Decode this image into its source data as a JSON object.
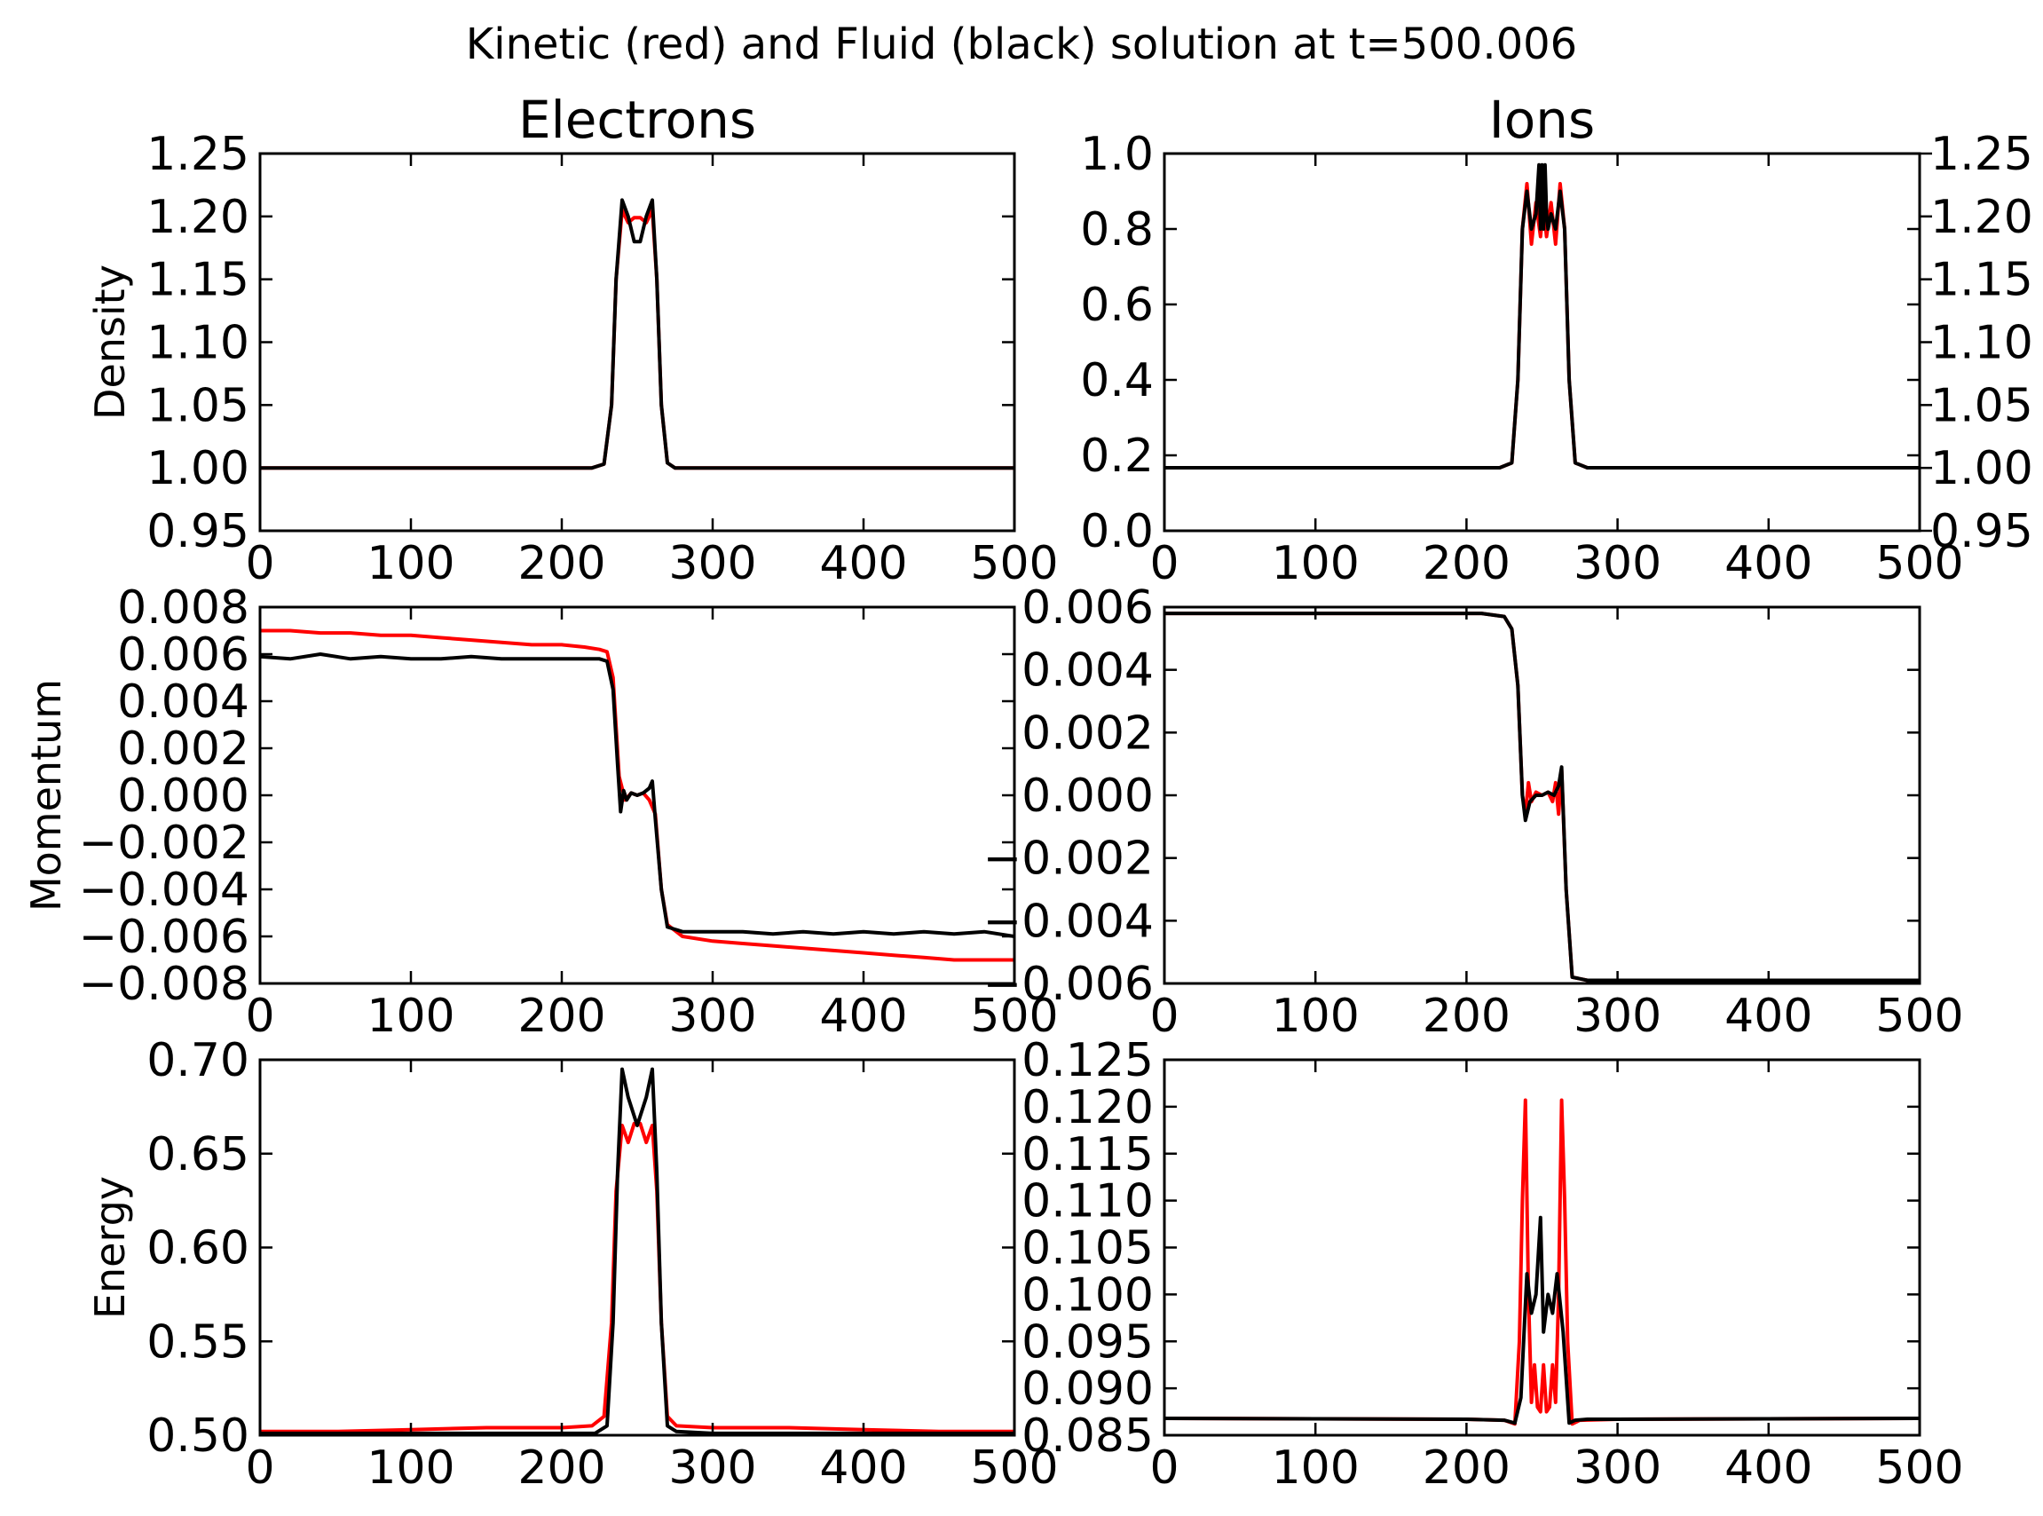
{
  "title": "Kinetic (red) and Fluid (black) solution at t=500.006",
  "colors": {
    "kinetic": "#ff0000",
    "fluid": "#000000"
  },
  "chart_data": [
    {
      "id": "electrons-density",
      "type": "line",
      "title": "Electrons",
      "xlabel": "",
      "ylabel": "Density",
      "xlim": [
        0,
        500
      ],
      "ylim": [
        0.95,
        1.25
      ],
      "xticks": [
        0,
        100,
        200,
        300,
        400,
        500
      ],
      "yticks": [
        0.95,
        1.0,
        1.05,
        1.1,
        1.15,
        1.2,
        1.25
      ],
      "ytick_decimals": 2,
      "series": [
        {
          "color": "#ff0000",
          "x": [
            0,
            220,
            228,
            233,
            236,
            240,
            244,
            248,
            252,
            256,
            260,
            263,
            266,
            270,
            275,
            280,
            500
          ],
          "y": [
            1.0,
            1.0,
            1.003,
            1.05,
            1.15,
            1.205,
            1.195,
            1.199,
            1.199,
            1.195,
            1.205,
            1.15,
            1.05,
            1.004,
            1.0,
            1.0,
            1.0
          ]
        },
        {
          "color": "#000000",
          "x": [
            0,
            220,
            228,
            233,
            236,
            240,
            244,
            248,
            252,
            256,
            260,
            263,
            266,
            270,
            275,
            280,
            500
          ],
          "y": [
            1.0,
            1.0,
            1.003,
            1.05,
            1.15,
            1.213,
            1.2,
            1.18,
            1.18,
            1.2,
            1.213,
            1.15,
            1.05,
            1.004,
            1.0,
            1.0,
            1.0
          ]
        }
      ]
    },
    {
      "id": "ions-density",
      "type": "line",
      "title": "Ions",
      "xlabel": "",
      "ylabel": "",
      "xlim": [
        0,
        500
      ],
      "ylim": [
        0.0,
        1.0
      ],
      "xticks": [
        0,
        100,
        200,
        300,
        400,
        500
      ],
      "yticks": [
        0.0,
        0.2,
        0.4,
        0.6,
        0.8,
        1.0
      ],
      "ytick_decimals": 1,
      "y2lim": [
        0.95,
        1.25
      ],
      "y2ticks": [
        0.95,
        1.0,
        1.05,
        1.1,
        1.15,
        1.2,
        1.25
      ],
      "series": [
        {
          "color": "#ff0000",
          "x": [
            0,
            222,
            230,
            234,
            237,
            240,
            243,
            246,
            249,
            251,
            253,
            256,
            259,
            262,
            265,
            268,
            272,
            280,
            500
          ],
          "y": [
            0.167,
            0.167,
            0.18,
            0.4,
            0.8,
            0.92,
            0.76,
            0.87,
            0.78,
            0.86,
            0.78,
            0.87,
            0.76,
            0.92,
            0.8,
            0.4,
            0.18,
            0.167,
            0.167
          ]
        },
        {
          "color": "#000000",
          "x": [
            0,
            222,
            230,
            234,
            237,
            240,
            243,
            246,
            248,
            249,
            250,
            251,
            252,
            253,
            254,
            256,
            259,
            262,
            265,
            268,
            272,
            280,
            500
          ],
          "y": [
            0.167,
            0.167,
            0.18,
            0.4,
            0.8,
            0.9,
            0.8,
            0.84,
            0.97,
            0.8,
            0.97,
            0.8,
            0.97,
            0.84,
            0.8,
            0.84,
            0.8,
            0.9,
            0.8,
            0.4,
            0.18,
            0.167,
            0.167
          ]
        }
      ]
    },
    {
      "id": "electrons-momentum",
      "type": "line",
      "title": "",
      "xlabel": "",
      "ylabel": "Momentum",
      "xlim": [
        0,
        500
      ],
      "ylim": [
        -0.008,
        0.008
      ],
      "xticks": [
        0,
        100,
        200,
        300,
        400,
        500
      ],
      "yticks": [
        -0.008,
        -0.006,
        -0.004,
        -0.002,
        0.0,
        0.002,
        0.004,
        0.006,
        0.008
      ],
      "ytick_decimals": 3,
      "series": [
        {
          "color": "#ff0000",
          "x": [
            0,
            20,
            40,
            60,
            80,
            100,
            120,
            140,
            160,
            180,
            200,
            215,
            225,
            230,
            234,
            238,
            242,
            246,
            250,
            254,
            258,
            262,
            266,
            270,
            280,
            300,
            320,
            340,
            360,
            380,
            400,
            420,
            440,
            460,
            480,
            500
          ],
          "y": [
            0.007,
            0.007,
            0.0069,
            0.0069,
            0.0068,
            0.0068,
            0.0067,
            0.0066,
            0.0065,
            0.0064,
            0.0064,
            0.0063,
            0.0062,
            0.0061,
            0.005,
            0.0008,
            -0.0002,
            0.0001,
            0.0,
            0.0001,
            -0.0002,
            -0.0008,
            -0.004,
            -0.0055,
            -0.006,
            -0.0062,
            -0.0063,
            -0.0064,
            -0.0065,
            -0.0066,
            -0.0067,
            -0.0068,
            -0.0069,
            -0.007,
            -0.007,
            -0.007
          ]
        },
        {
          "color": "#000000",
          "x": [
            0,
            20,
            40,
            60,
            80,
            100,
            120,
            140,
            160,
            180,
            200,
            215,
            225,
            230,
            234,
            237,
            239,
            241,
            243,
            246,
            250,
            254,
            258,
            260,
            262,
            266,
            270,
            280,
            300,
            320,
            340,
            360,
            380,
            400,
            420,
            440,
            460,
            480,
            500
          ],
          "y": [
            0.0059,
            0.0058,
            0.006,
            0.0058,
            0.0059,
            0.0058,
            0.0058,
            0.0059,
            0.0058,
            0.0058,
            0.0058,
            0.0058,
            0.0058,
            0.0057,
            0.0045,
            0.0013,
            -0.0007,
            0.0002,
            -0.0002,
            0.0001,
            0.0,
            0.0001,
            0.0003,
            0.0006,
            -0.001,
            -0.004,
            -0.0056,
            -0.0058,
            -0.0058,
            -0.0058,
            -0.0059,
            -0.0058,
            -0.0059,
            -0.0058,
            -0.0059,
            -0.0058,
            -0.0059,
            -0.0058,
            -0.006
          ]
        }
      ]
    },
    {
      "id": "ions-momentum",
      "type": "line",
      "title": "",
      "xlabel": "",
      "ylabel": "",
      "xlim": [
        0,
        500
      ],
      "ylim": [
        -0.006,
        0.006
      ],
      "xticks": [
        0,
        100,
        200,
        300,
        400,
        500
      ],
      "yticks": [
        -0.006,
        -0.004,
        -0.002,
        0.0,
        0.002,
        0.004,
        0.006
      ],
      "ytick_decimals": 3,
      "series": [
        {
          "color": "#ff0000",
          "x": [
            0,
            210,
            225,
            230,
            234,
            237,
            239,
            241,
            243,
            246,
            250,
            254,
            257,
            259,
            261,
            263,
            266,
            270,
            280,
            300,
            500
          ],
          "y": [
            0.0058,
            0.0058,
            0.0057,
            0.0053,
            0.0035,
            0.0,
            -0.0006,
            0.0004,
            -0.0002,
            0.0001,
            0.0,
            0.0001,
            -0.0002,
            0.0004,
            -0.0006,
            0.0008,
            -0.003,
            -0.0058,
            -0.0059,
            -0.0059,
            -0.0059
          ]
        },
        {
          "color": "#000000",
          "x": [
            0,
            210,
            225,
            230,
            234,
            237,
            239,
            242,
            246,
            250,
            254,
            258,
            261,
            263,
            266,
            270,
            280,
            300,
            500
          ],
          "y": [
            0.0058,
            0.0058,
            0.0057,
            0.0053,
            0.0035,
            0.0,
            -0.0008,
            -0.0002,
            0.0,
            0.0,
            0.0001,
            0.0,
            0.0003,
            0.0009,
            -0.003,
            -0.0058,
            -0.0059,
            -0.0059,
            -0.0059
          ]
        }
      ]
    },
    {
      "id": "electrons-energy",
      "type": "line",
      "title": "",
      "xlabel": "",
      "ylabel": "Energy",
      "xlim": [
        0,
        500
      ],
      "ylim": [
        0.5,
        0.7
      ],
      "xticks": [
        0,
        100,
        200,
        300,
        400,
        500
      ],
      "yticks": [
        0.5,
        0.55,
        0.6,
        0.65,
        0.7
      ],
      "ytick_decimals": 2,
      "series": [
        {
          "color": "#ff0000",
          "x": [
            0,
            50,
            100,
            150,
            200,
            220,
            228,
            233,
            236,
            240,
            244,
            248,
            252,
            256,
            260,
            263,
            266,
            270,
            276,
            300,
            350,
            400,
            450,
            500
          ],
          "y": [
            0.502,
            0.502,
            0.503,
            0.504,
            0.504,
            0.505,
            0.51,
            0.56,
            0.63,
            0.665,
            0.656,
            0.666,
            0.666,
            0.656,
            0.665,
            0.63,
            0.56,
            0.51,
            0.505,
            0.504,
            0.504,
            0.503,
            0.502,
            0.502
          ]
        },
        {
          "color": "#000000",
          "x": [
            0,
            50,
            100,
            150,
            200,
            222,
            230,
            234,
            237,
            240,
            244,
            248,
            250,
            252,
            256,
            260,
            263,
            266,
            270,
            276,
            300,
            500
          ],
          "y": [
            0.501,
            0.501,
            0.501,
            0.501,
            0.501,
            0.501,
            0.505,
            0.56,
            0.64,
            0.695,
            0.68,
            0.67,
            0.665,
            0.67,
            0.68,
            0.695,
            0.64,
            0.56,
            0.505,
            0.502,
            0.501,
            0.501
          ]
        }
      ]
    },
    {
      "id": "ions-energy",
      "type": "line",
      "title": "",
      "xlabel": "",
      "ylabel": "",
      "xlim": [
        0,
        500
      ],
      "ylim": [
        0.085,
        0.125
      ],
      "xticks": [
        0,
        100,
        200,
        300,
        400,
        500
      ],
      "yticks": [
        0.085,
        0.09,
        0.095,
        0.1,
        0.105,
        0.11,
        0.115,
        0.12,
        0.125
      ],
      "ytick_decimals": 3,
      "series": [
        {
          "color": "#ff0000",
          "x": [
            0,
            200,
            225,
            232,
            235,
            237,
            239,
            241,
            243,
            245,
            247,
            249,
            251,
            253,
            255,
            257,
            259,
            261,
            263,
            265,
            267,
            270,
            275,
            300,
            500
          ],
          "y": [
            0.0868,
            0.0867,
            0.0866,
            0.0862,
            0.095,
            0.11,
            0.1207,
            0.1,
            0.0885,
            0.0925,
            0.088,
            0.0875,
            0.0925,
            0.0875,
            0.088,
            0.0925,
            0.0885,
            0.1,
            0.1207,
            0.11,
            0.095,
            0.0862,
            0.0866,
            0.0867,
            0.0868
          ]
        },
        {
          "color": "#000000",
          "x": [
            0,
            200,
            225,
            232,
            236,
            240,
            243,
            246,
            249,
            251,
            254,
            257,
            260,
            264,
            268,
            272,
            280,
            300,
            500
          ],
          "y": [
            0.0868,
            0.0867,
            0.0866,
            0.0863,
            0.089,
            0.1022,
            0.098,
            0.1,
            0.1082,
            0.096,
            0.1,
            0.098,
            0.1022,
            0.096,
            0.0863,
            0.0866,
            0.0867,
            0.0867,
            0.0868
          ]
        }
      ]
    }
  ]
}
